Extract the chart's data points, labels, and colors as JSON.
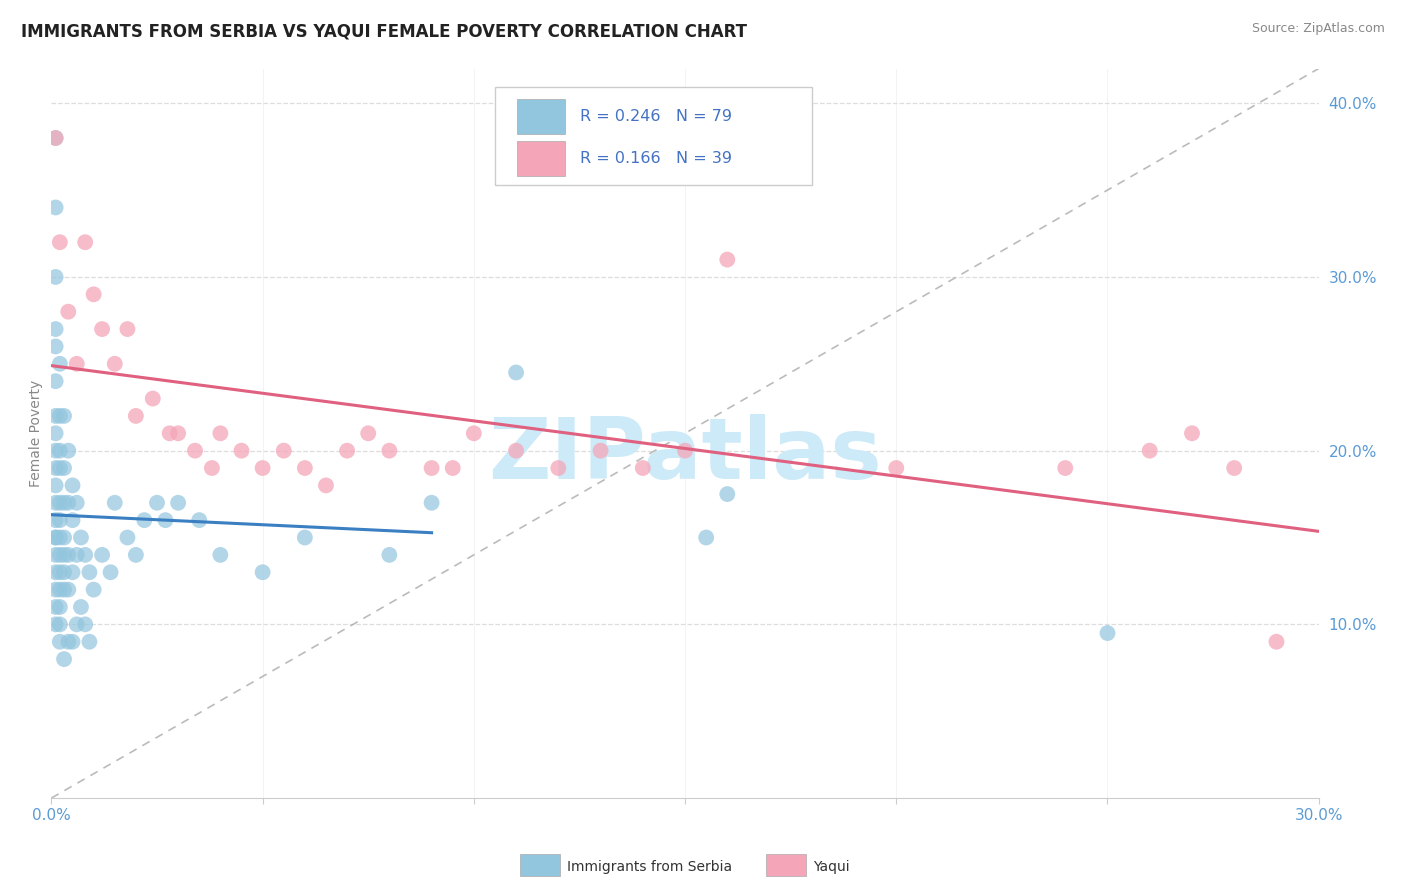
{
  "title": "IMMIGRANTS FROM SERBIA VS YAQUI FEMALE POVERTY CORRELATION CHART",
  "source": "Source: ZipAtlas.com",
  "ylabel": "Female Poverty",
  "xlim": [
    0.0,
    0.3
  ],
  "ylim": [
    0.0,
    0.42
  ],
  "legend_r1": "R = 0.246",
  "legend_n1": "N = 79",
  "legend_r2": "R = 0.166",
  "legend_n2": "N = 39",
  "color_blue": "#92C5DE",
  "color_pink": "#F4A6B8",
  "color_line_blue": "#3A7FC1",
  "color_line_pink": "#E06080",
  "watermark_color": "#CDEAF8",
  "title_fontsize": 12,
  "axis_label_fontsize": 10,
  "tick_fontsize": 11,
  "serbia_x": [
    0.001,
    0.001,
    0.001,
    0.001,
    0.001,
    0.001,
    0.001,
    0.001,
    0.001,
    0.001,
    0.001,
    0.001,
    0.001,
    0.001,
    0.001,
    0.001,
    0.001,
    0.001,
    0.001,
    0.001,
    0.002,
    0.002,
    0.002,
    0.002,
    0.002,
    0.002,
    0.002,
    0.002,
    0.002,
    0.002,
    0.002,
    0.002,
    0.002,
    0.003,
    0.003,
    0.003,
    0.003,
    0.003,
    0.003,
    0.003,
    0.003,
    0.004,
    0.004,
    0.004,
    0.004,
    0.004,
    0.005,
    0.005,
    0.005,
    0.005,
    0.006,
    0.006,
    0.006,
    0.007,
    0.007,
    0.008,
    0.008,
    0.009,
    0.009,
    0.01,
    0.012,
    0.014,
    0.015,
    0.018,
    0.02,
    0.022,
    0.025,
    0.027,
    0.03,
    0.035,
    0.04,
    0.05,
    0.06,
    0.08,
    0.09,
    0.11,
    0.155,
    0.16,
    0.25
  ],
  "serbia_y": [
    0.38,
    0.34,
    0.3,
    0.27,
    0.26,
    0.24,
    0.22,
    0.21,
    0.2,
    0.19,
    0.18,
    0.17,
    0.16,
    0.15,
    0.15,
    0.14,
    0.13,
    0.12,
    0.11,
    0.1,
    0.25,
    0.22,
    0.2,
    0.19,
    0.17,
    0.16,
    0.15,
    0.14,
    0.13,
    0.12,
    0.11,
    0.1,
    0.09,
    0.22,
    0.19,
    0.17,
    0.15,
    0.14,
    0.13,
    0.12,
    0.08,
    0.2,
    0.17,
    0.14,
    0.12,
    0.09,
    0.18,
    0.16,
    0.13,
    0.09,
    0.17,
    0.14,
    0.1,
    0.15,
    0.11,
    0.14,
    0.1,
    0.13,
    0.09,
    0.12,
    0.14,
    0.13,
    0.17,
    0.15,
    0.14,
    0.16,
    0.17,
    0.16,
    0.17,
    0.16,
    0.14,
    0.13,
    0.15,
    0.14,
    0.17,
    0.245,
    0.15,
    0.175,
    0.095
  ],
  "yaqui_x": [
    0.001,
    0.002,
    0.004,
    0.006,
    0.008,
    0.01,
    0.012,
    0.015,
    0.018,
    0.02,
    0.024,
    0.028,
    0.03,
    0.034,
    0.038,
    0.04,
    0.045,
    0.05,
    0.055,
    0.06,
    0.065,
    0.07,
    0.075,
    0.08,
    0.09,
    0.095,
    0.1,
    0.11,
    0.12,
    0.13,
    0.14,
    0.15,
    0.16,
    0.2,
    0.24,
    0.26,
    0.27,
    0.28,
    0.29
  ],
  "yaqui_y": [
    0.38,
    0.32,
    0.28,
    0.25,
    0.32,
    0.29,
    0.27,
    0.25,
    0.27,
    0.22,
    0.23,
    0.21,
    0.21,
    0.2,
    0.19,
    0.21,
    0.2,
    0.19,
    0.2,
    0.19,
    0.18,
    0.2,
    0.21,
    0.2,
    0.19,
    0.19,
    0.21,
    0.2,
    0.19,
    0.2,
    0.19,
    0.2,
    0.31,
    0.19,
    0.19,
    0.2,
    0.21,
    0.19,
    0.09
  ]
}
